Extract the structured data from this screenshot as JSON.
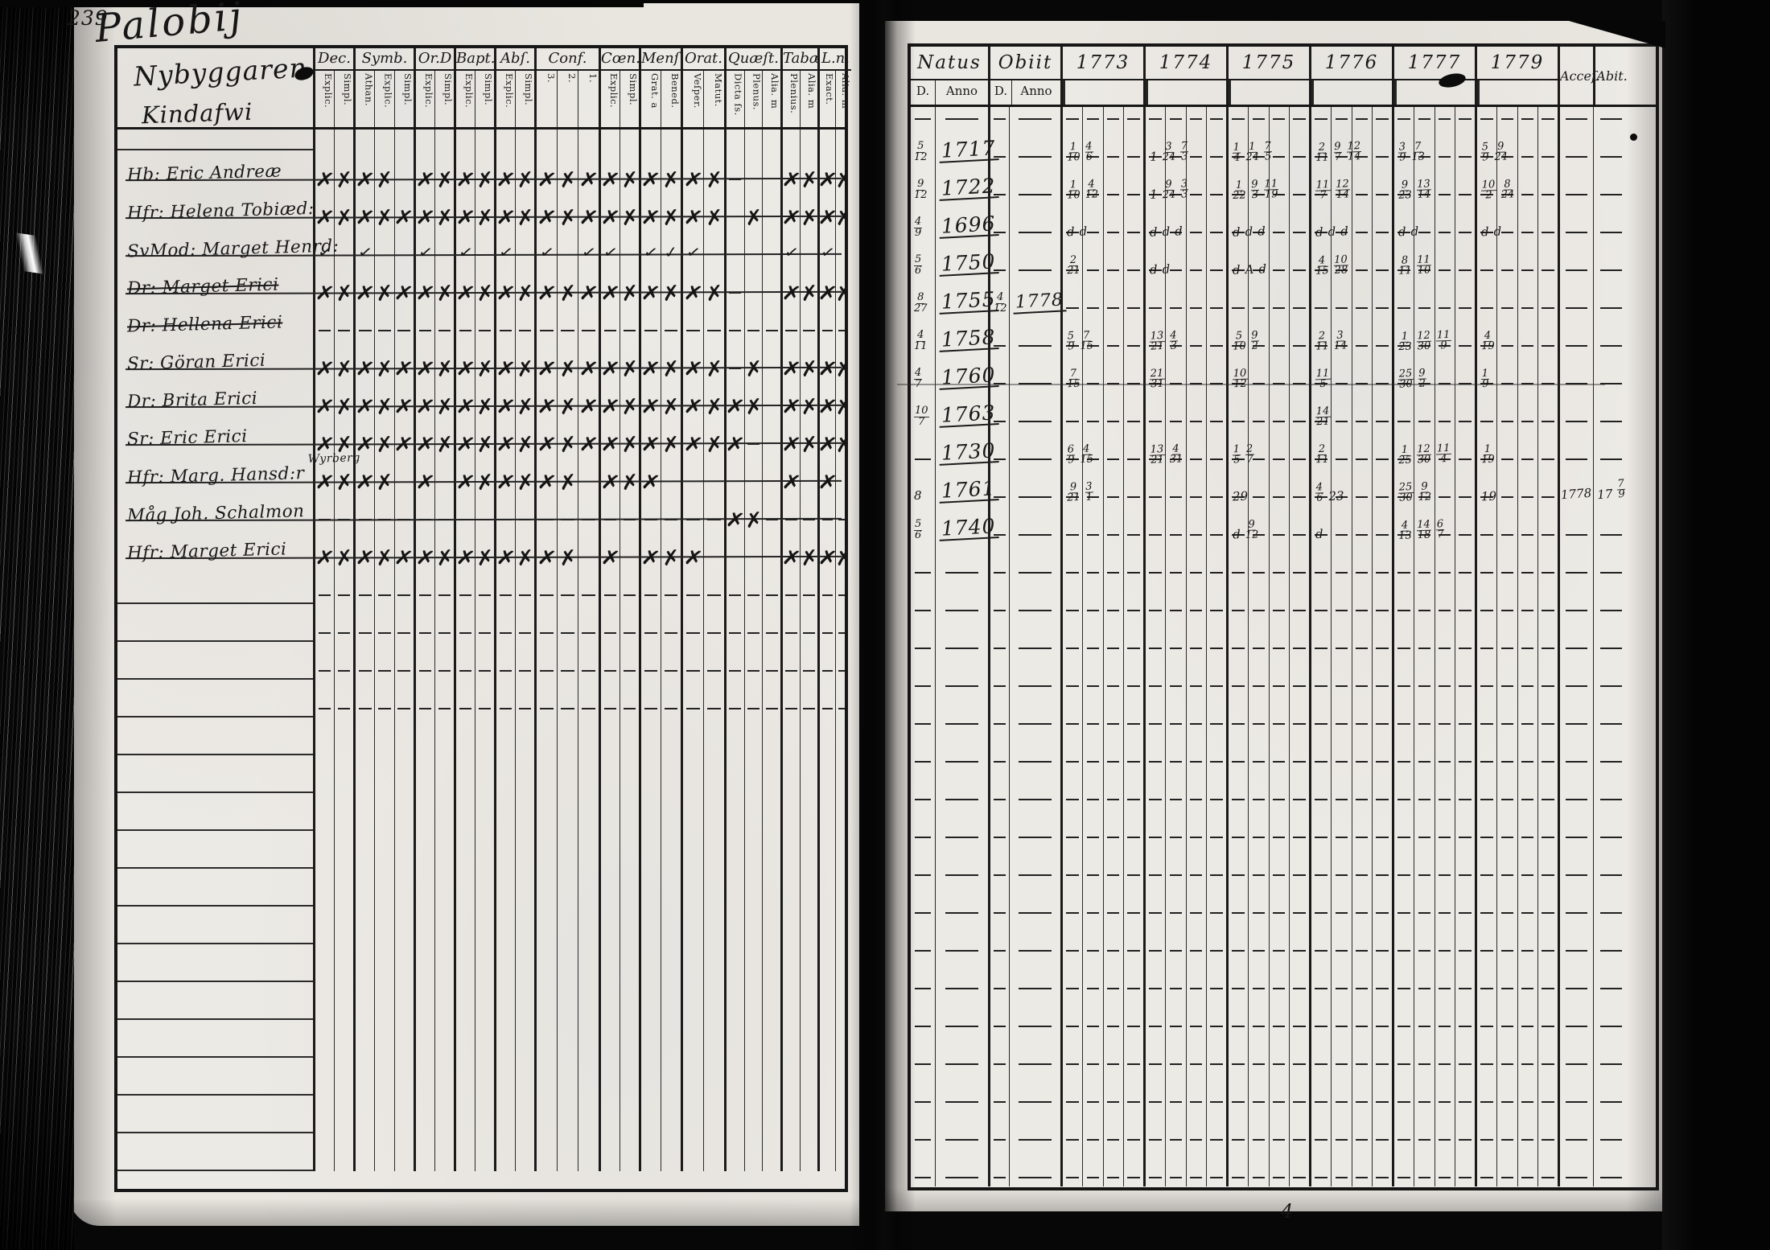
{
  "page": {
    "folio": "239",
    "title_script": "Palobij",
    "custos": "4"
  },
  "colors": {
    "page_bg": "#e9e6e0",
    "ink": "#191919",
    "book_bg": "#070707"
  },
  "left_table": {
    "heading_lines": [
      "Nybyggaren",
      "Kindafwi"
    ],
    "groups": [
      {
        "label": "Dec.",
        "subs": [
          "Explic.",
          "Simpl."
        ]
      },
      {
        "label": "Symb.",
        "subs": [
          "Athan.",
          "Explic.",
          "Simpl."
        ]
      },
      {
        "label": "Or.D",
        "subs": [
          "Explic.",
          "Simpl."
        ]
      },
      {
        "label": "Bapt.",
        "subs": [
          "Explic.",
          "Simpl."
        ]
      },
      {
        "label": "Abſ.",
        "subs": [
          "Explic.",
          "Simpl."
        ]
      },
      {
        "label": "Conf.",
        "subs": [
          "3.",
          "2.",
          "1."
        ]
      },
      {
        "label": "Cœn.D",
        "subs": [
          "Explic.",
          "Simpl."
        ]
      },
      {
        "label": "Menſ.",
        "subs": [
          "Grat. a",
          "Bened."
        ]
      },
      {
        "label": "Orat.",
        "subs": [
          "Veſper.",
          "Matut."
        ]
      },
      {
        "label": "Quæſt.",
        "subs": [
          "Dicta ſs.",
          "Plenus.",
          "Alia. m"
        ]
      },
      {
        "label": "Tabæ.",
        "subs": [
          "Plenius.",
          "Alia. m"
        ]
      },
      {
        "label": "L.n.",
        "subs": [
          "Exact.",
          "Alia. m"
        ]
      }
    ],
    "rows": [
      {
        "name": "Hb: Eric Andreæ",
        "struck": false,
        "note": "",
        "marks": [
          "xx",
          "xx.",
          "xx",
          "xx",
          "xx",
          "xxx",
          "xx",
          "xx",
          "xx",
          "-..",
          "xx",
          "xx"
        ]
      },
      {
        "name": "Hfr: Helena Tobiæd:",
        "struck": false,
        "note": "",
        "marks": [
          "xx",
          "xxx",
          "xx",
          "xx",
          "xx",
          "xxx",
          "xx",
          "xx",
          "xx",
          ".x.",
          "xxx",
          "xx"
        ]
      },
      {
        "name": "SvMod: Marget Henrd:",
        "struck": false,
        "note": "",
        "marks": [
          "v.",
          "v..",
          "v.",
          "v.",
          "v.",
          "v.v",
          "v.",
          "vv",
          "v.",
          "...",
          "v.",
          "v."
        ]
      },
      {
        "name": "Dr: Marget Erici",
        "struck": true,
        "note": "",
        "marks": [
          "xx",
          "xxx",
          "xx",
          "xx",
          "xx",
          "xxx",
          "xx",
          "xx",
          "xx",
          "-..",
          "xx",
          "xx"
        ]
      },
      {
        "name": "Dr: Hellena Erici",
        "struck": true,
        "note": "",
        "marks": [
          "--",
          "---",
          "--",
          "--",
          "--",
          "---",
          "--",
          "--",
          "--",
          "---",
          "--",
          "--"
        ]
      },
      {
        "name": "Sr: Göran Erici",
        "struck": false,
        "note": "",
        "marks": [
          "xx",
          "xxx",
          "xx",
          "xx",
          "xx",
          "xxx",
          "xx",
          "xx",
          "xx",
          "-x.",
          "xx",
          "xx"
        ]
      },
      {
        "name": "Dr: Brita Erici",
        "struck": false,
        "note": "",
        "marks": [
          "xx",
          "xxx",
          "xx",
          "xx",
          "xx",
          "xxx",
          "xx",
          "xx",
          "xx",
          "xx.",
          "xx",
          "xx"
        ]
      },
      {
        "name": "Sr: Eric Erici",
        "struck": false,
        "note": "",
        "marks": [
          "xx",
          "xxx",
          "xx",
          "xx",
          "xx",
          "xxx",
          "xx",
          "xx",
          "xx",
          "x-.",
          "xx",
          "xx"
        ]
      },
      {
        "name": "Hfr: Marg. Hansd:r",
        "struck": false,
        "note": "Wyrberg",
        "marks": [
          "xx",
          "xx.",
          "x.",
          "xx",
          "xx",
          "xx.",
          "xx",
          "x.",
          "..",
          "...",
          "x.",
          "x."
        ]
      },
      {
        "name": "Måg Joh. Schalmon",
        "struck": false,
        "note": "",
        "marks": [
          "--",
          "---",
          "--",
          "--",
          "--",
          "---",
          "--",
          "--",
          "--",
          "xx-",
          "--",
          "--"
        ]
      },
      {
        "name": "Hfr: Marget Erici",
        "struck": false,
        "note": "",
        "marks": [
          "xx",
          "xxx",
          "xx",
          "xx",
          "xx",
          "xx.",
          "x.",
          "xx",
          "x.",
          "...",
          "xx",
          "xx"
        ]
      }
    ],
    "empty_dash_rows": 4,
    "empty_blank_rows": 12
  },
  "right_table": {
    "natus_label": "Natus",
    "obiit_label": "Obiit",
    "d_label": "D.",
    "anno_label": "Anno",
    "years": [
      "1773",
      "1774",
      "1775",
      "1776",
      "1777",
      "1779"
    ],
    "acce_label": "Acceſ.",
    "abit_label": "Abit.",
    "rows": [
      {
        "natus_d": "5/12",
        "natus_anno": "1717",
        "obiit_d": "",
        "obiit_anno": "",
        "y": [
          "1/10 4/6",
          "1 3/24 7/3",
          "1/4 1/24 7/5",
          "2/11 9/7 12/14",
          "3/9 7/13",
          "5/9 9/24"
        ],
        "acce": "",
        "abit": ""
      },
      {
        "natus_d": "9/12",
        "natus_anno": "1722",
        "obiit_d": "",
        "obiit_anno": "",
        "y": [
          "1/10 4/12",
          "1 9/24 3/3",
          "1/22 9/3 11/19",
          "11/7 12/14",
          "9/23 13/14",
          "10/2 8/24"
        ],
        "acce": "",
        "abit": ""
      },
      {
        "natus_d": "4/9",
        "natus_anno": "1696",
        "obiit_d": "",
        "obiit_anno": "",
        "y": [
          "d d",
          "d d d",
          "d d d",
          "d d d",
          "d d",
          "d d"
        ],
        "acce": "",
        "abit": ""
      },
      {
        "natus_d": "5/6",
        "natus_anno": "1750",
        "obiit_d": "",
        "obiit_anno": "",
        "y": [
          "2/21",
          "d d",
          "d A d",
          "4/15 10/28",
          "8/11 11/10",
          ""
        ],
        "acce": "",
        "abit": ""
      },
      {
        "natus_d": "8/27",
        "natus_anno": "1755",
        "obiit_d": "4/12",
        "obiit_anno": "1778",
        "y": [
          "",
          "",
          "",
          "",
          "",
          ""
        ],
        "acce": "",
        "abit": ""
      },
      {
        "natus_d": "4/11",
        "natus_anno": "1758",
        "obiit_d": "",
        "obiit_anno": "",
        "y": [
          "5/9 7/15",
          "13/21 4/3",
          "5/10 9/2",
          "2/11 3/14",
          "1/23 12/30 11/9",
          "4/19"
        ],
        "acce": "",
        "abit": ""
      },
      {
        "natus_d": "4/7",
        "natus_anno": "1760",
        "obiit_d": "",
        "obiit_anno": "",
        "y": [
          "7/15",
          "21/31",
          "10/12",
          "11/5",
          "25/30 9/2",
          "1/9"
        ],
        "acce": "",
        "abit": ""
      },
      {
        "natus_d": "10/7",
        "natus_anno": "1763",
        "obiit_d": "",
        "obiit_anno": "",
        "y": [
          "",
          "",
          "",
          "14/21",
          "",
          ""
        ],
        "acce": "",
        "abit": ""
      },
      {
        "natus_d": "",
        "natus_anno": "1730",
        "obiit_d": "",
        "obiit_anno": "",
        "y": [
          "6/9 4/15",
          "13/21 4/31",
          "1/5 2/7",
          "2/11",
          "1/25 12/30 11/4",
          "1/19"
        ],
        "acce": "",
        "abit": ""
      },
      {
        "natus_d": "8",
        "natus_anno": "1761",
        "obiit_d": "",
        "obiit_anno": "",
        "y": [
          "9/21 3/1",
          "",
          "29",
          "4/6 23",
          "25/30 9/12",
          "19"
        ],
        "acce": "1778",
        "abit": "17 7/9"
      },
      {
        "natus_d": "5/6",
        "natus_anno": "1740",
        "obiit_d": "",
        "obiit_anno": "",
        "y": [
          "",
          "",
          "d 9/12",
          "d",
          "4/13 14/18 6/7",
          ""
        ],
        "acce": "",
        "abit": ""
      }
    ],
    "empty_dash_rows": 17
  }
}
